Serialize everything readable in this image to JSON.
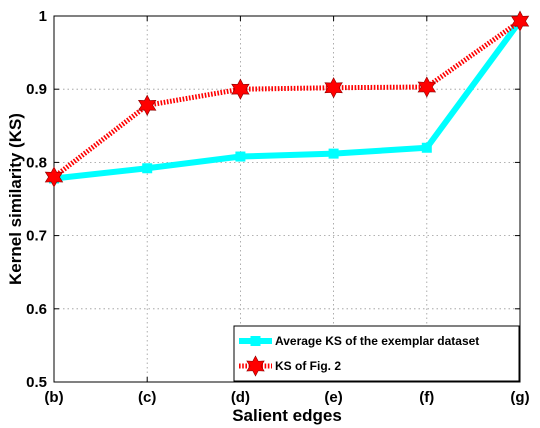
{
  "chart_data": {
    "type": "line",
    "xlabel": "Salient edges",
    "ylabel": "Kernel similarity (KS)",
    "categories": [
      "(b)",
      "(c)",
      "(d)",
      "(e)",
      "(f)",
      "(g)"
    ],
    "ylim": [
      0.5,
      1.0
    ],
    "yticks": [
      "0.5",
      "0.6",
      "0.7",
      "0.8",
      "0.9",
      "1"
    ],
    "grid": true,
    "legend_position": "bottom-right",
    "series": [
      {
        "name": "Average KS of the exemplar dataset",
        "values": [
          0.778,
          0.792,
          0.808,
          0.812,
          0.82,
          0.993
        ],
        "color": "#00ffff",
        "marker": "square",
        "line_style": "solid"
      },
      {
        "name": "KS of Fig. 2",
        "values": [
          0.78,
          0.878,
          0.9,
          0.902,
          0.903,
          0.993
        ],
        "color": "#ff0000",
        "marker": "hexagram",
        "line_style": "dotted"
      }
    ]
  }
}
